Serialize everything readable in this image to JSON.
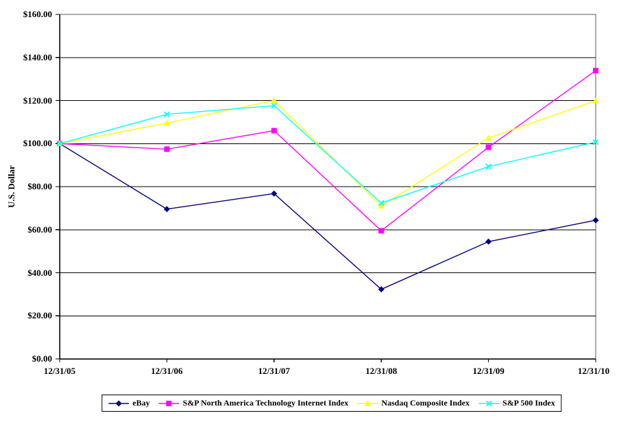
{
  "chart_data": {
    "type": "line",
    "title": "",
    "ylabel": "U.S. Dollar",
    "xlabel": "",
    "ylim": [
      0,
      160
    ],
    "y_tick_step": 20,
    "y_ticks": [
      "$0.00",
      "$20.00",
      "$40.00",
      "$60.00",
      "$80.00",
      "$100.00",
      "$120.00",
      "$140.00",
      "$160.00"
    ],
    "categories": [
      "12/31/05",
      "12/31/06",
      "12/31/07",
      "12/31/08",
      "12/31/09",
      "12/31/10"
    ],
    "grid": true,
    "legend_position": "bottom-boxed",
    "plot_border_color": "#808080",
    "axis_color": "#000000",
    "gridline_color": "#000000",
    "series": [
      {
        "name": "eBay",
        "color": "#000080",
        "marker": "diamond",
        "values": [
          100.0,
          69.57,
          76.79,
          32.3,
          54.46,
          64.39
        ]
      },
      {
        "name": "S&P North America  Technology  Internet  Index",
        "color": "#FF00FF",
        "marker": "square",
        "values": [
          100.0,
          97.4,
          106.0,
          59.5,
          98.3,
          133.9
        ]
      },
      {
        "name": "Nasdaq Composite Index",
        "color": "#FFFF00",
        "marker": "triangle",
        "values": [
          100.0,
          109.5,
          120.0,
          71.0,
          102.6,
          119.9
        ]
      },
      {
        "name": "S&P 500 Index",
        "color": "#00FFFF",
        "marker": "x",
        "values": [
          100.0,
          113.6,
          117.6,
          72.4,
          89.3,
          100.7
        ]
      }
    ]
  }
}
